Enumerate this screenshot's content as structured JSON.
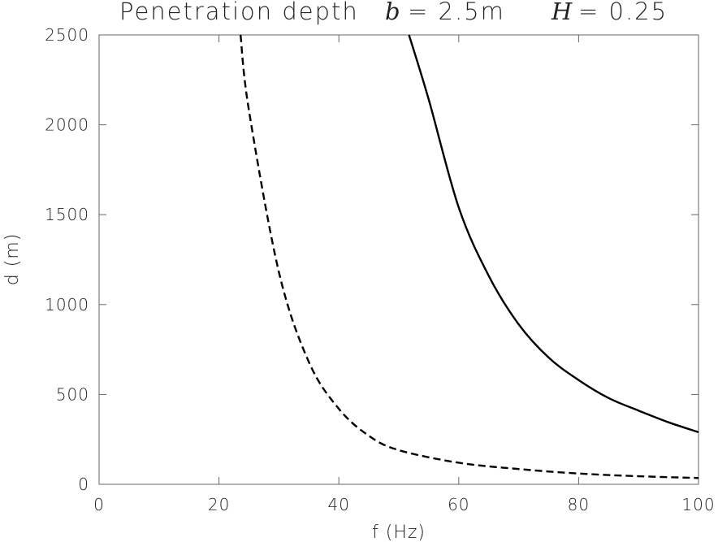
{
  "chart_data": {
    "type": "line",
    "title": {
      "main": "Penetration depth",
      "param1_symbol": "b",
      "param1_value": "= 2.5m",
      "param2_symbol": "H",
      "param2_value": "= 0.25"
    },
    "xlabel": "f (Hz)",
    "ylabel": "d (m)",
    "xlim": [
      0,
      100
    ],
    "ylim": [
      0,
      2500
    ],
    "xticks": [
      "0",
      "20",
      "40",
      "60",
      "80",
      "100"
    ],
    "yticks": [
      "0",
      "500",
      "1000",
      "1500",
      "2000",
      "2500"
    ],
    "xtick_values": [
      0,
      20,
      40,
      60,
      80,
      100
    ],
    "ytick_values": [
      0,
      500,
      1000,
      1500,
      2000,
      2500
    ],
    "grid": false,
    "series": [
      {
        "style": "solid",
        "x": [
          51.7,
          55,
          60,
          65,
          70,
          75,
          80,
          85,
          90,
          95,
          100
        ],
        "y": [
          2500,
          2140,
          1540,
          1160,
          890,
          705,
          580,
          480,
          410,
          345,
          290
        ]
      },
      {
        "style": "dashed",
        "x": [
          23.6,
          25,
          30,
          35,
          40,
          45,
          50,
          60,
          70,
          80,
          90,
          100
        ],
        "y": [
          2500,
          2080,
          1180,
          680,
          420,
          270,
          190,
          120,
          85,
          60,
          45,
          35
        ]
      }
    ]
  }
}
